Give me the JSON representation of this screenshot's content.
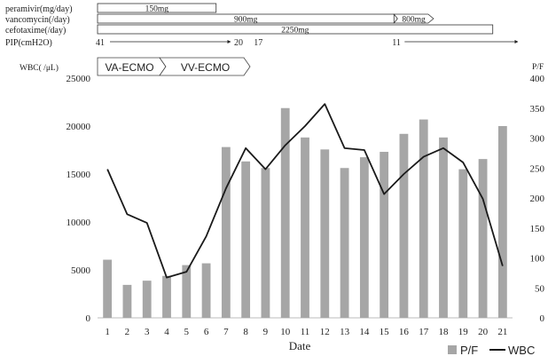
{
  "treatments": [
    {
      "label": "peramivir(mg/day)",
      "bars": [
        {
          "text": "150mg",
          "from": 1,
          "to": 7
        }
      ]
    },
    {
      "label": "vancomycin(/day)",
      "bars": [
        {
          "text": "900mg",
          "from": 1,
          "to": 16
        },
        {
          "text": "800mg",
          "from": 16,
          "to": 18,
          "arrow": true
        }
      ]
    },
    {
      "label": "cefotaxime(/day)",
      "bars": [
        {
          "text": "2250mg",
          "from": 1,
          "to": 21
        }
      ]
    }
  ],
  "pip": {
    "label": "PIP(cmH2O)",
    "values": [
      {
        "text": "41",
        "day": 1
      },
      {
        "text": "20",
        "day": 8
      },
      {
        "text": "17",
        "day": 9
      },
      {
        "text": "11",
        "day": 16
      }
    ]
  },
  "ecmo": {
    "va_label": "VA-ECMO",
    "vv_label": "VV-ECMO"
  },
  "chart_data": {
    "type": "bar",
    "xlabel": "Date",
    "left_axis_label": "WBC( /μL)",
    "right_axis_label": "P/F",
    "categories": [
      "1",
      "2",
      "3",
      "4",
      "5",
      "6",
      "7",
      "8",
      "9",
      "10",
      "11",
      "12",
      "13",
      "14",
      "15",
      "16",
      "17",
      "18",
      "19",
      "20",
      "21"
    ],
    "ylim_left": [
      0,
      25000
    ],
    "yticks_left": [
      0,
      5000,
      10000,
      15000,
      20000,
      25000
    ],
    "ylim_right": [
      0,
      400
    ],
    "yticks_right": [
      0,
      50,
      100,
      150,
      200,
      250,
      300,
      350,
      400
    ],
    "legend_position": "bottom-right",
    "series": [
      {
        "name": "P/F",
        "kind": "bar",
        "axis": "right",
        "color": "#a6a6a6",
        "values": [
          97,
          55,
          62,
          70,
          88,
          91,
          285,
          261,
          250,
          350,
          301,
          281,
          250,
          268,
          277,
          307,
          331,
          301,
          248,
          265,
          320
        ]
      },
      {
        "name": "WBC",
        "kind": "line",
        "axis": "left",
        "color": "#1a1a1a",
        "values": [
          15500,
          10800,
          9900,
          4200,
          4800,
          8500,
          13500,
          17700,
          15500,
          18000,
          20000,
          22300,
          17700,
          17500,
          12900,
          15000,
          16800,
          17700,
          16200,
          12400,
          5400
        ]
      }
    ]
  }
}
